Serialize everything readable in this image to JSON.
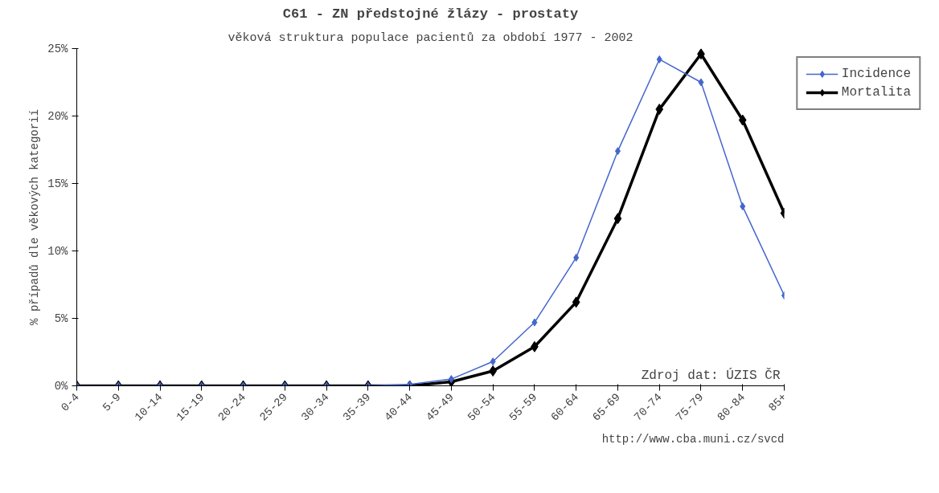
{
  "chart_data": {
    "type": "line",
    "title": "C61 - ZN předstojné žlázy - prostaty",
    "subtitle": "věková struktura populace pacientů za období 1977 - 2002",
    "ylabel": "% případů dle věkových kategorií",
    "categories": [
      "0-4",
      "5-9",
      "10-14",
      "15-19",
      "20-24",
      "25-29",
      "30-34",
      "35-39",
      "40-44",
      "45-49",
      "50-54",
      "55-59",
      "60-64",
      "65-69",
      "70-74",
      "75-79",
      "80-84",
      "85+"
    ],
    "series": [
      {
        "name": "Incidence",
        "color": "#4466cc",
        "values": [
          0,
          0,
          0,
          0,
          0,
          0,
          0,
          0,
          0.1,
          0.5,
          1.8,
          4.7,
          9.5,
          17.4,
          24.2,
          22.5,
          13.3,
          6.7
        ]
      },
      {
        "name": "Mortalita",
        "color": "#000000",
        "values": [
          0,
          0,
          0,
          0,
          0,
          0,
          0,
          0,
          0.0,
          0.3,
          1.1,
          2.9,
          6.2,
          12.4,
          20.5,
          24.6,
          19.7,
          12.8
        ]
      }
    ],
    "ylim": [
      0,
      25
    ],
    "yticks": [
      {
        "value": 0,
        "label": "0%"
      },
      {
        "value": 5,
        "label": "5%"
      },
      {
        "value": 10,
        "label": "10%"
      },
      {
        "value": 15,
        "label": "15%"
      },
      {
        "value": 20,
        "label": "20%"
      },
      {
        "value": 25,
        "label": "25%"
      }
    ],
    "grid": false,
    "legend": "top right",
    "marker": "diamond",
    "line_style": "solid",
    "annotations": [
      "Zdroj dat: ÚZIS ČR",
      "http://www.cba.muni.cz/svcd"
    ]
  }
}
